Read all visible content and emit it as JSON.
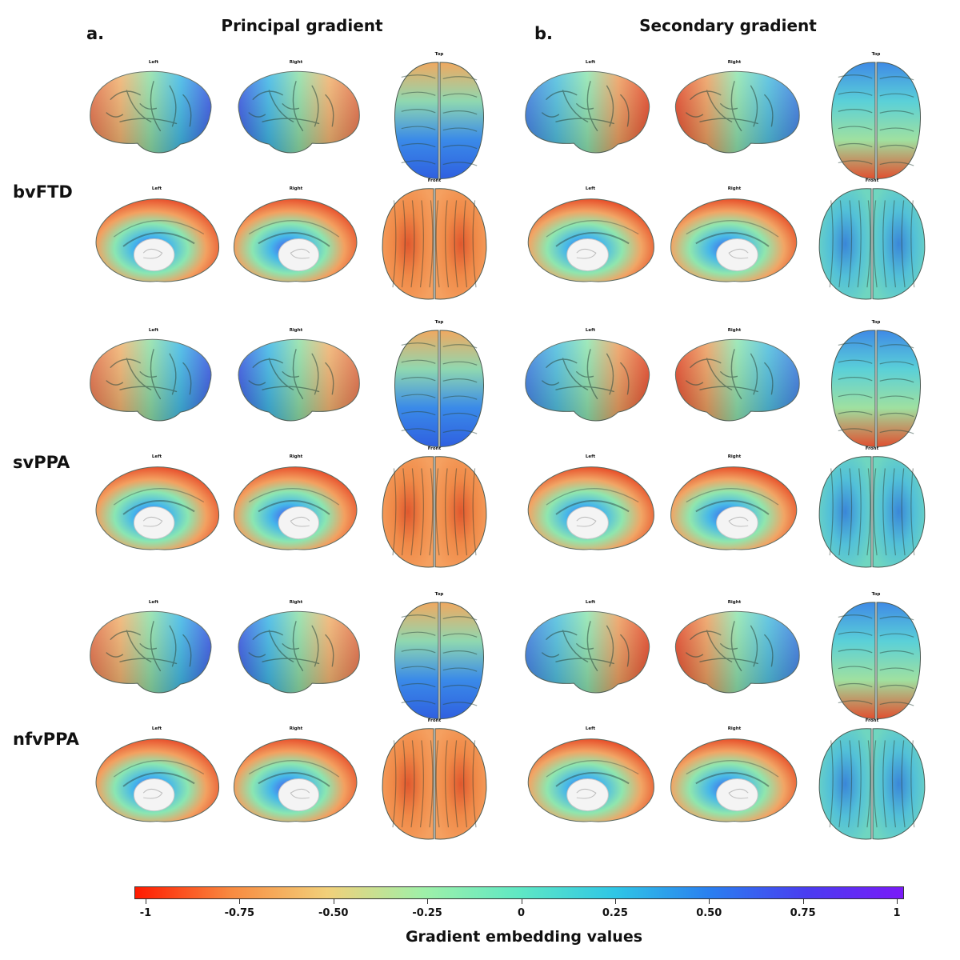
{
  "panels": [
    {
      "letter": "a.",
      "title": "Principal gradient"
    },
    {
      "letter": "b.",
      "title": "Secondary gradient"
    }
  ],
  "groups": [
    "bvFTD",
    "svPPA",
    "nfvPPA"
  ],
  "view_labels": {
    "left": "Left",
    "right": "Right",
    "top": "Top",
    "front": "Front"
  },
  "colorbar": {
    "title": "Gradient embedding values",
    "ticks": [
      "-1",
      "-0.75",
      "-0.50",
      "-0.25",
      "0",
      "0.25",
      "0.50",
      "0.75",
      "1"
    ],
    "range": [
      -1,
      1
    ],
    "colors": [
      "#ff1a00",
      "#f88a40",
      "#f2d07a",
      "#9ff0a8",
      "#5fe8c4",
      "#2fc6e6",
      "#2a7ef0",
      "#4a3cf0",
      "#7a1af8"
    ]
  },
  "palette": {
    "lateral_principal": [
      "#e8724a",
      "#f3b470",
      "#8fe0a8",
      "#3fb9e8",
      "#3a5be8"
    ],
    "lateral_secondary": [
      "#3f7fe6",
      "#4fc0e0",
      "#8fe6b0",
      "#f0a060",
      "#e84a2a"
    ],
    "medial_principal": [
      "#e8522e",
      "#f3a060",
      "#8ae6b2",
      "#45b6ea",
      "#4a52e8"
    ],
    "medial_secondary": [
      "#e8502a",
      "#f1a565",
      "#8fe6ae",
      "#48b8e8",
      "#3f62e6"
    ],
    "top_principal": [
      "#f0a860",
      "#8fd8b0",
      "#3a8ae8",
      "#2f60e0"
    ],
    "top_secondary": [
      "#3f8ae6",
      "#5ad0d8",
      "#9fe0a0",
      "#e05030"
    ],
    "front_principal": [
      "#e0582e",
      "#f08a48",
      "#f5a060"
    ],
    "front_secondary": [
      "#3a86d8",
      "#52c0d8",
      "#6fd6c0"
    ]
  }
}
